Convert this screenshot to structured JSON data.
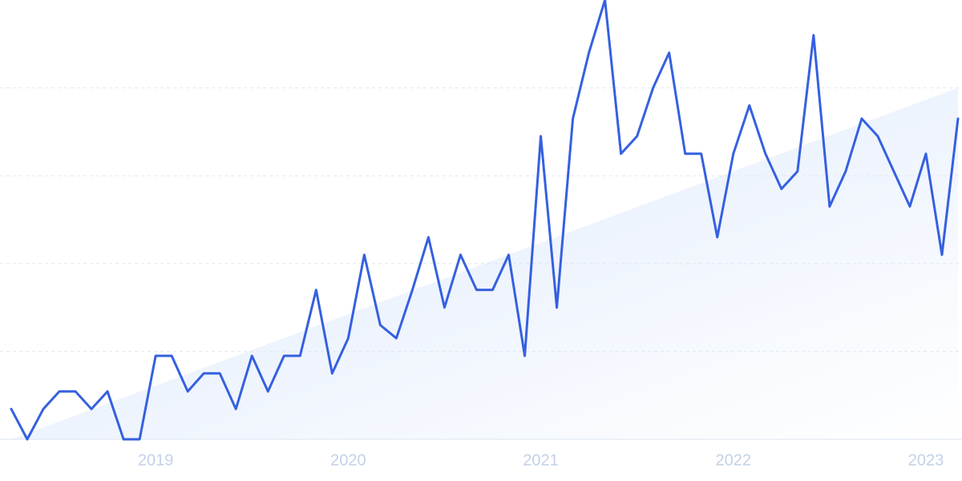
{
  "chart_data": {
    "type": "line",
    "categories": [
      null,
      null,
      null,
      null,
      null,
      null,
      null,
      null,
      null,
      "2019",
      null,
      null,
      null,
      null,
      null,
      null,
      null,
      null,
      null,
      null,
      null,
      "2020",
      null,
      null,
      null,
      null,
      null,
      null,
      null,
      null,
      null,
      null,
      null,
      "2021",
      null,
      null,
      null,
      null,
      null,
      null,
      null,
      null,
      null,
      null,
      null,
      "2022",
      null,
      null,
      null,
      null,
      null,
      null,
      null,
      null,
      null,
      null,
      null,
      "2023",
      null,
      null
    ],
    "series": [
      {
        "color": "#3560e0",
        "values": [
          6.9,
          0,
          6.9,
          10.9,
          10.9,
          6.9,
          10.9,
          0,
          0,
          19,
          19,
          10.9,
          15,
          15,
          6.9,
          19,
          10.9,
          19,
          19,
          34,
          15,
          23,
          42,
          26,
          23,
          34,
          46,
          30,
          42,
          34,
          34,
          42,
          19,
          69,
          30,
          73,
          88,
          100,
          65,
          69,
          80,
          88,
          65,
          65,
          46,
          65,
          76,
          65,
          57,
          61,
          92,
          53,
          61,
          73,
          69,
          61,
          53,
          65,
          42,
          73
        ]
      }
    ],
    "trend": {
      "color": "#dce8fb",
      "values": [
        0,
        80
      ]
    },
    "ylim": [
      0,
      100
    ],
    "yticks": [
      0,
      20,
      40,
      60,
      80
    ],
    "grid": true
  }
}
